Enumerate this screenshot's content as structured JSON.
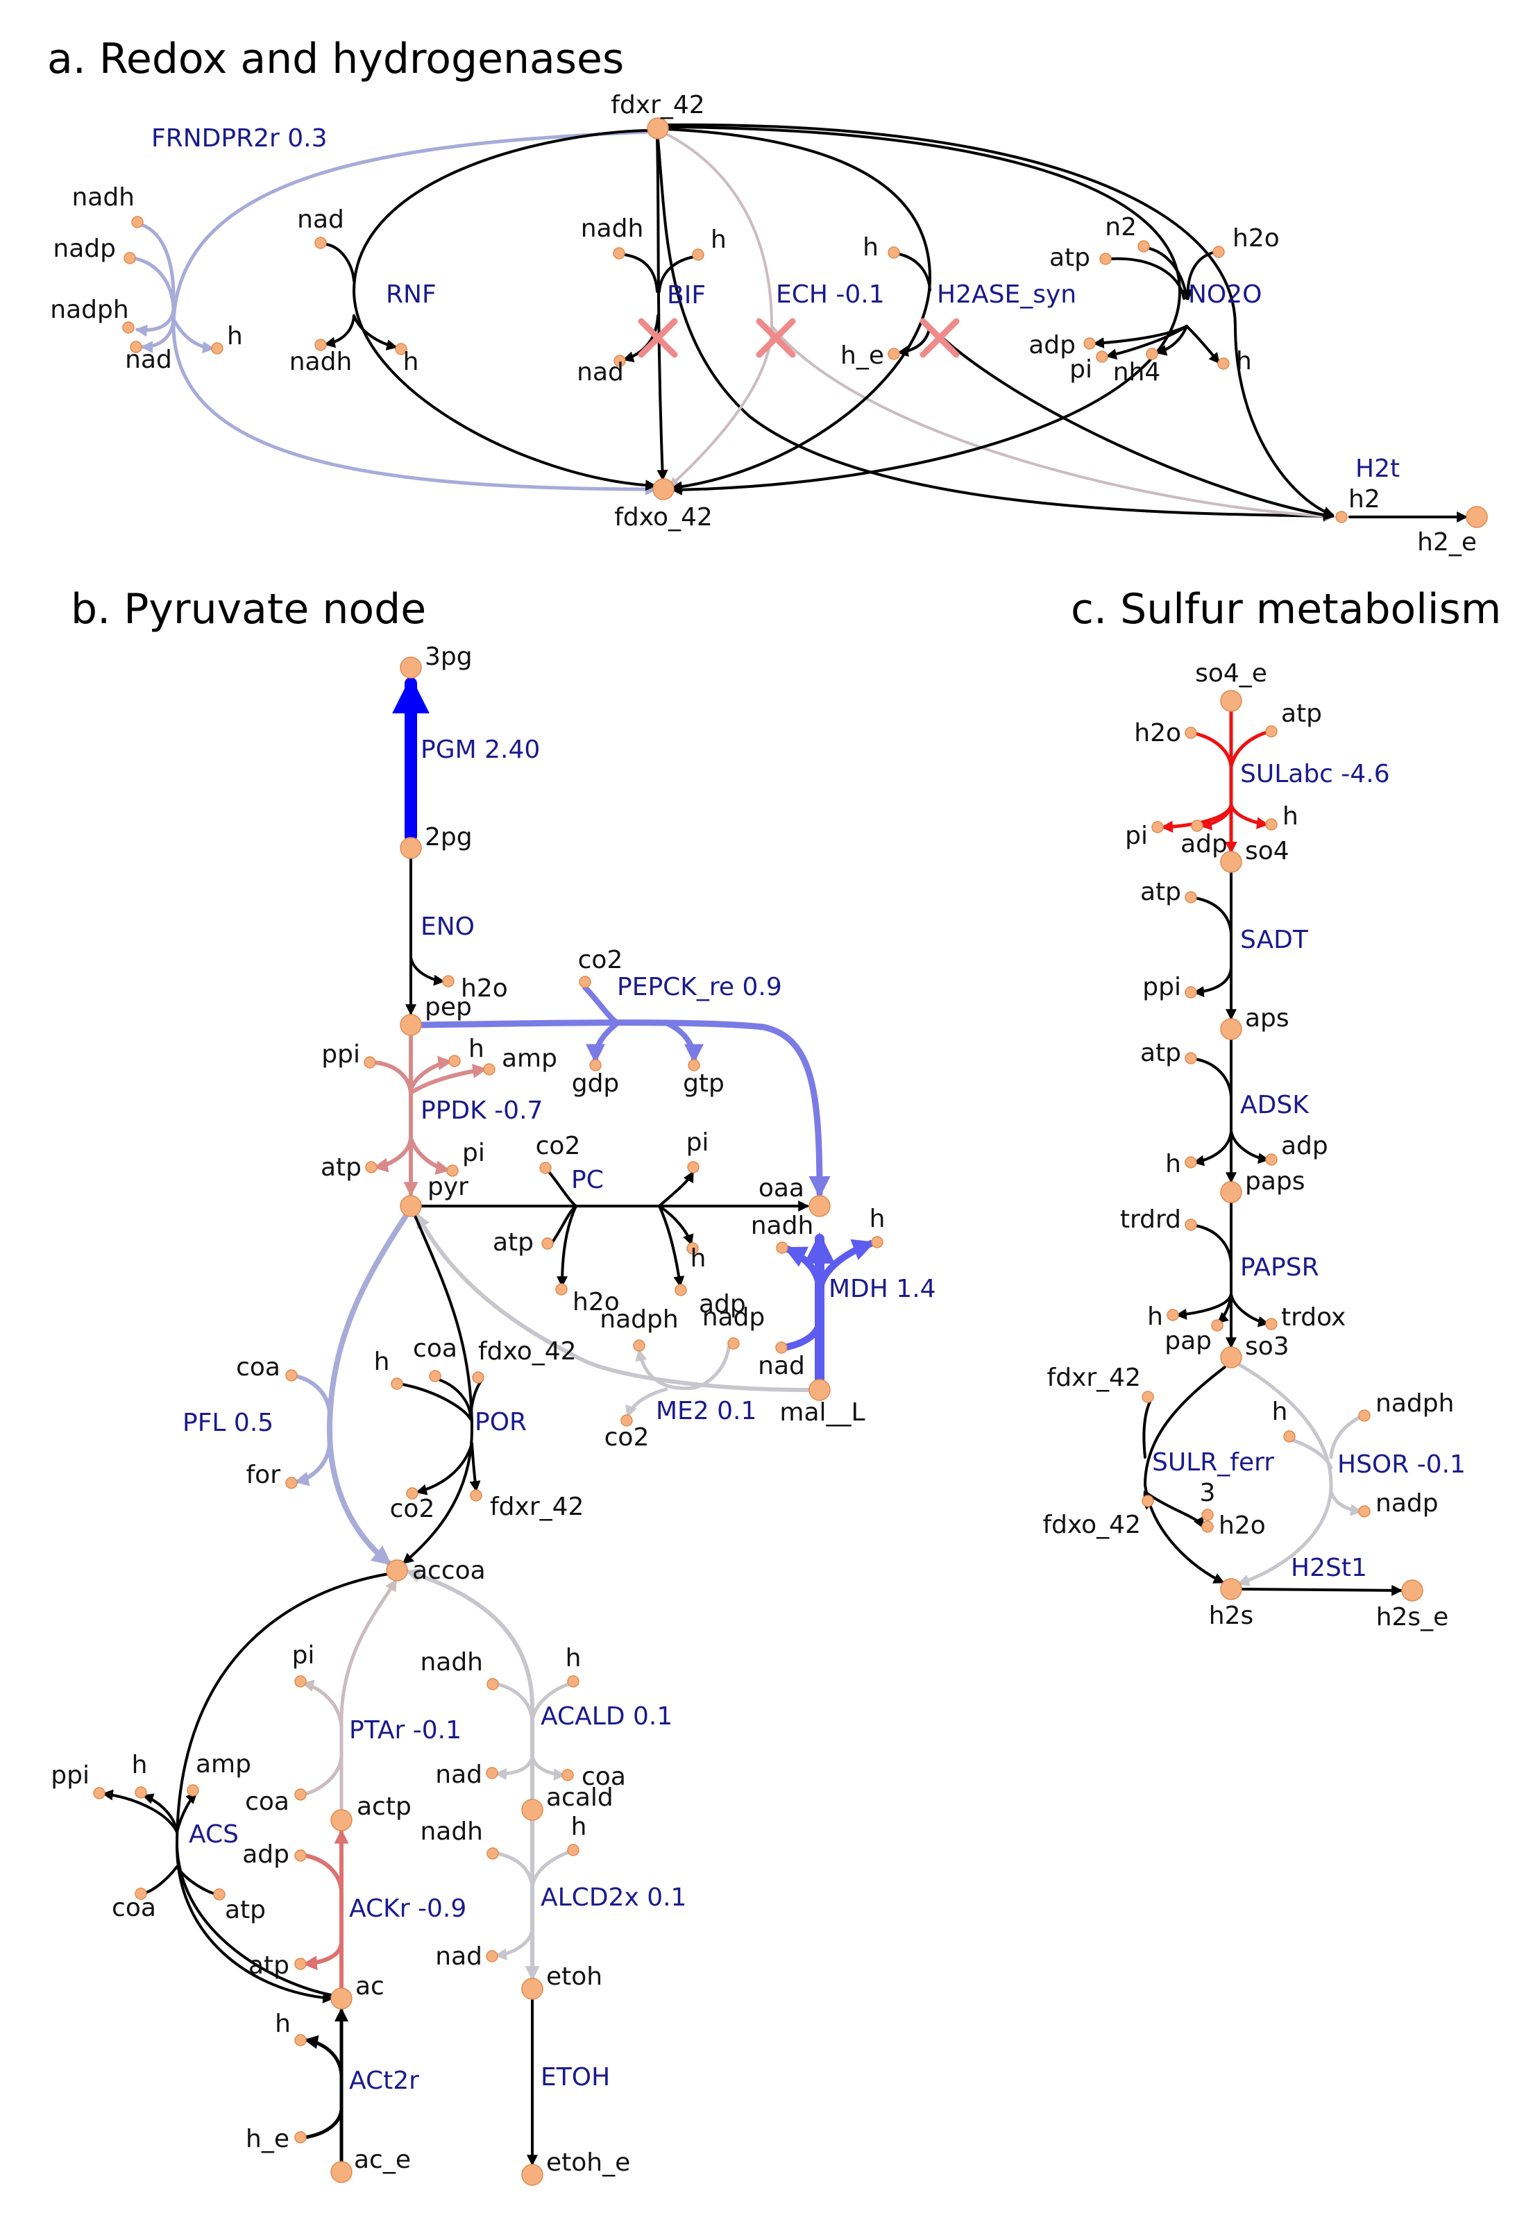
{
  "palette": {
    "black": "#000000",
    "blue_strong": "#0000ff",
    "blue_medium": "#5c5cf0",
    "blue_light": "#7b7be6",
    "lavender": "#a7abd8",
    "grey": "#c6c6cc",
    "grey_pink": "#cbbcc0",
    "pink": "#d88a8a",
    "pink_strong": "#dd7070",
    "red": "#ee1111",
    "node_fill": "#f5b07e",
    "node_stroke": "#e08a50",
    "cross": "#f08a8a",
    "reaction_label": "#1a1a8c"
  },
  "panels": {
    "a": {
      "title": "a. Redox and hydrogenases"
    },
    "b": {
      "title": "b. Pyruvate node"
    },
    "c": {
      "title": "c. Sulfur metabolism"
    }
  },
  "nodes": [
    {
      "id": "a_fdxr",
      "label": "fdxr_42",
      "size": "major"
    },
    {
      "id": "a_fdxo",
      "label": "fdxo_42",
      "size": "major"
    },
    {
      "id": "a_h2",
      "label": "h2",
      "size": "minor"
    },
    {
      "id": "a_h2e",
      "label": "h2_e",
      "size": "major"
    },
    {
      "id": "a_f_nadh",
      "label": "nadh",
      "size": "minor"
    },
    {
      "id": "a_f_nadp",
      "label": "nadp",
      "size": "minor"
    },
    {
      "id": "a_f_nadph",
      "label": "nadph",
      "size": "minor"
    },
    {
      "id": "a_f_nad",
      "label": "nad",
      "size": "minor"
    },
    {
      "id": "a_f_h",
      "label": "h",
      "size": "minor"
    },
    {
      "id": "a_r_nad",
      "label": "nad",
      "size": "minor"
    },
    {
      "id": "a_r_nadh",
      "label": "nadh",
      "size": "minor"
    },
    {
      "id": "a_r_h",
      "label": "h",
      "size": "minor"
    },
    {
      "id": "a_b_nadh",
      "label": "nadh",
      "size": "minor"
    },
    {
      "id": "a_b_h",
      "label": "h",
      "size": "minor"
    },
    {
      "id": "a_b_nad",
      "label": "nad",
      "size": "minor"
    },
    {
      "id": "a_s_h",
      "label": "h",
      "size": "minor"
    },
    {
      "id": "a_s_he",
      "label": "h_e",
      "size": "minor"
    },
    {
      "id": "a_n_atp",
      "label": "atp",
      "size": "minor"
    },
    {
      "id": "a_n_n2",
      "label": "n2",
      "size": "minor"
    },
    {
      "id": "a_n_h2o",
      "label": "h2o",
      "size": "minor"
    },
    {
      "id": "a_n_adp",
      "label": "adp",
      "size": "minor"
    },
    {
      "id": "a_n_pi",
      "label": "pi",
      "size": "minor"
    },
    {
      "id": "a_n_nh4",
      "label": "nh4",
      "size": "minor"
    },
    {
      "id": "a_n_h",
      "label": "h",
      "size": "minor"
    },
    {
      "id": "b_3pg",
      "label": "3pg",
      "size": "major"
    },
    {
      "id": "b_2pg",
      "label": "2pg",
      "size": "major"
    },
    {
      "id": "b_pep",
      "label": "pep",
      "size": "major"
    },
    {
      "id": "b_pyr",
      "label": "pyr",
      "size": "major"
    },
    {
      "id": "b_oaa",
      "label": "oaa",
      "size": "major"
    },
    {
      "id": "b_mal",
      "label": "mal__L",
      "size": "major"
    },
    {
      "id": "b_accoa",
      "label": "accoa",
      "size": "major"
    },
    {
      "id": "b_actp",
      "label": "actp",
      "size": "major"
    },
    {
      "id": "b_ac",
      "label": "ac",
      "size": "major"
    },
    {
      "id": "b_ace",
      "label": "ac_e",
      "size": "major"
    },
    {
      "id": "b_acald",
      "label": "acald",
      "size": "major"
    },
    {
      "id": "b_etoh",
      "label": "etoh",
      "size": "major"
    },
    {
      "id": "b_etohe",
      "label": "etoh_e",
      "size": "major"
    },
    {
      "id": "b_eno_h2o",
      "label": "h2o",
      "size": "minor"
    },
    {
      "id": "b_pk_co2",
      "label": "co2",
      "size": "minor"
    },
    {
      "id": "b_pk_gdp",
      "label": "gdp",
      "size": "minor"
    },
    {
      "id": "b_pk_gtp",
      "label": "gtp",
      "size": "minor"
    },
    {
      "id": "b_pp_ppi",
      "label": "ppi",
      "size": "minor"
    },
    {
      "id": "b_pp_h",
      "label": "h",
      "size": "minor"
    },
    {
      "id": "b_pp_amp",
      "label": "amp",
      "size": "minor"
    },
    {
      "id": "b_pp_atp",
      "label": "atp",
      "size": "minor"
    },
    {
      "id": "b_pp_pi",
      "label": "pi",
      "size": "minor"
    },
    {
      "id": "b_pc_co2",
      "label": "co2",
      "size": "minor"
    },
    {
      "id": "b_pc_pi",
      "label": "pi",
      "size": "minor"
    },
    {
      "id": "b_pc_atp",
      "label": "atp",
      "size": "minor"
    },
    {
      "id": "b_pc_h2o",
      "label": "h2o",
      "size": "minor"
    },
    {
      "id": "b_pc_h",
      "label": "h",
      "size": "minor"
    },
    {
      "id": "b_pc_adp",
      "label": "adp",
      "size": "minor"
    },
    {
      "id": "b_md_nadh",
      "label": "nadh",
      "size": "minor"
    },
    {
      "id": "b_md_h",
      "label": "h",
      "size": "minor"
    },
    {
      "id": "b_md_nad",
      "label": "nad",
      "size": "minor"
    },
    {
      "id": "b_me_nadph",
      "label": "nadph",
      "size": "minor"
    },
    {
      "id": "b_me_nadp",
      "label": "nadp",
      "size": "minor"
    },
    {
      "id": "b_me_co2",
      "label": "co2",
      "size": "minor"
    },
    {
      "id": "b_pfl_coa",
      "label": "coa",
      "size": "minor"
    },
    {
      "id": "b_pfl_for",
      "label": "for",
      "size": "minor"
    },
    {
      "id": "b_por_h",
      "label": "h",
      "size": "minor"
    },
    {
      "id": "b_por_coa",
      "label": "coa",
      "size": "minor"
    },
    {
      "id": "b_por_fdxo",
      "label": "fdxo_42",
      "size": "minor"
    },
    {
      "id": "b_por_co2",
      "label": "co2",
      "size": "minor"
    },
    {
      "id": "b_por_fdxr",
      "label": "fdxr_42",
      "size": "minor"
    },
    {
      "id": "b_pt_pi",
      "label": "pi",
      "size": "minor"
    },
    {
      "id": "b_pt_coa",
      "label": "coa",
      "size": "minor"
    },
    {
      "id": "b_ak_adp",
      "label": "adp",
      "size": "minor"
    },
    {
      "id": "b_ak_atp",
      "label": "atp",
      "size": "minor"
    },
    {
      "id": "b_acs_ppi",
      "label": "ppi",
      "size": "minor"
    },
    {
      "id": "b_acs_h",
      "label": "h",
      "size": "minor"
    },
    {
      "id": "b_acs_amp",
      "label": "amp",
      "size": "minor"
    },
    {
      "id": "b_acs_coa",
      "label": "coa",
      "size": "minor"
    },
    {
      "id": "b_acs_atp",
      "label": "atp",
      "size": "minor"
    },
    {
      "id": "b_ad_nadh",
      "label": "nadh",
      "size": "minor"
    },
    {
      "id": "b_ad_h",
      "label": "h",
      "size": "minor"
    },
    {
      "id": "b_ad_nad",
      "label": "nad",
      "size": "minor"
    },
    {
      "id": "b_ad_coa",
      "label": "coa",
      "size": "minor"
    },
    {
      "id": "b_al_nadh",
      "label": "nadh",
      "size": "minor"
    },
    {
      "id": "b_al_h",
      "label": "h",
      "size": "minor"
    },
    {
      "id": "b_al_nad",
      "label": "nad",
      "size": "minor"
    },
    {
      "id": "b_at_h",
      "label": "h",
      "size": "minor"
    },
    {
      "id": "b_at_he",
      "label": "h_e",
      "size": "minor"
    },
    {
      "id": "c_so4e",
      "label": "so4_e",
      "size": "major"
    },
    {
      "id": "c_so4",
      "label": "so4",
      "size": "major"
    },
    {
      "id": "c_aps",
      "label": "aps",
      "size": "major"
    },
    {
      "id": "c_paps",
      "label": "paps",
      "size": "major"
    },
    {
      "id": "c_so3",
      "label": "so3",
      "size": "major"
    },
    {
      "id": "c_h2s",
      "label": "h2s",
      "size": "major"
    },
    {
      "id": "c_h2se",
      "label": "h2s_e",
      "size": "major"
    },
    {
      "id": "c_su_h2o",
      "label": "h2o",
      "size": "minor"
    },
    {
      "id": "c_su_atp",
      "label": "atp",
      "size": "minor"
    },
    {
      "id": "c_su_pi",
      "label": "pi",
      "size": "minor"
    },
    {
      "id": "c_su_adp",
      "label": "adp",
      "size": "minor"
    },
    {
      "id": "c_su_h",
      "label": "h",
      "size": "minor"
    },
    {
      "id": "c_sa_atp",
      "label": "atp",
      "size": "minor"
    },
    {
      "id": "c_sa_ppi",
      "label": "ppi",
      "size": "minor"
    },
    {
      "id": "c_ad_atp",
      "label": "atp",
      "size": "minor"
    },
    {
      "id": "c_ad_h",
      "label": "h",
      "size": "minor"
    },
    {
      "id": "c_ad_adp",
      "label": "adp",
      "size": "minor"
    },
    {
      "id": "c_pa_trdrd",
      "label": "trdrd",
      "size": "minor"
    },
    {
      "id": "c_pa_h",
      "label": "h",
      "size": "minor"
    },
    {
      "id": "c_pa_pap",
      "label": "pap",
      "size": "minor"
    },
    {
      "id": "c_pa_trdox",
      "label": "trdox",
      "size": "minor"
    },
    {
      "id": "c_sl_fdxr",
      "label": "fdxr_42",
      "size": "minor"
    },
    {
      "id": "c_sl_fdxo",
      "label": "fdxo_42",
      "size": "minor"
    },
    {
      "id": "c_sl_3",
      "label": "3",
      "size": "minor"
    },
    {
      "id": "c_sl_h2o",
      "label": "h2o",
      "size": "minor"
    },
    {
      "id": "c_hs_h",
      "label": "h",
      "size": "minor"
    },
    {
      "id": "c_hs_nadph",
      "label": "nadph",
      "size": "minor"
    },
    {
      "id": "c_hs_nadp",
      "label": "nadp",
      "size": "minor"
    }
  ],
  "reactions": [
    {
      "id": "FRNDPR2r",
      "label": "FRNDPR2r 0.3",
      "color": "lavender"
    },
    {
      "id": "RNF",
      "label": "RNF",
      "color": "black"
    },
    {
      "id": "BIF",
      "label": "BIF",
      "color": "black",
      "knocked_out": true
    },
    {
      "id": "ECH",
      "label": "ECH -0.1",
      "color": "grey_pink",
      "knocked_out": true
    },
    {
      "id": "H2ASE_syn",
      "label": "H2ASE_syn",
      "color": "black",
      "knocked_out": true
    },
    {
      "id": "NO2O",
      "label": "NO2O",
      "color": "black"
    },
    {
      "id": "H2t",
      "label": "H2t",
      "color": "black"
    },
    {
      "id": "PGM",
      "label": "PGM 2.40",
      "color": "blue_strong"
    },
    {
      "id": "ENO",
      "label": "ENO",
      "color": "black"
    },
    {
      "id": "PEPCK_re",
      "label": "PEPCK_re 0.9",
      "color": "blue_light"
    },
    {
      "id": "PPDK",
      "label": "PPDK -0.7",
      "color": "pink"
    },
    {
      "id": "PC",
      "label": "PC",
      "color": "black"
    },
    {
      "id": "MDH",
      "label": "MDH 1.4",
      "color": "blue_medium"
    },
    {
      "id": "ME2",
      "label": "ME2 0.1",
      "color": "grey"
    },
    {
      "id": "PFL",
      "label": "PFL 0.5",
      "color": "lavender"
    },
    {
      "id": "POR",
      "label": "POR",
      "color": "black"
    },
    {
      "id": "PTAr",
      "label": "PTAr -0.1",
      "color": "grey_pink"
    },
    {
      "id": "ACALD",
      "label": "ACALD 0.1",
      "color": "grey"
    },
    {
      "id": "ACS",
      "label": "ACS",
      "color": "black"
    },
    {
      "id": "ACKr",
      "label": "ACKr -0.9",
      "color": "pink_strong"
    },
    {
      "id": "ALCD2x",
      "label": "ALCD2x 0.1",
      "color": "grey"
    },
    {
      "id": "ACt2r",
      "label": "ACt2r",
      "color": "black"
    },
    {
      "id": "ETOH",
      "label": "ETOH",
      "color": "black"
    },
    {
      "id": "SULabc",
      "label": "SULabc -4.6",
      "color": "red"
    },
    {
      "id": "SADT",
      "label": "SADT",
      "color": "black"
    },
    {
      "id": "ADSK",
      "label": "ADSK",
      "color": "black"
    },
    {
      "id": "PAPSR",
      "label": "PAPSR",
      "color": "black"
    },
    {
      "id": "SULR_ferr",
      "label": "SULR_ferr",
      "color": "black"
    },
    {
      "id": "HSOR",
      "label": "HSOR -0.1",
      "color": "grey"
    },
    {
      "id": "H2St1",
      "label": "H2St1",
      "color": "black"
    }
  ]
}
